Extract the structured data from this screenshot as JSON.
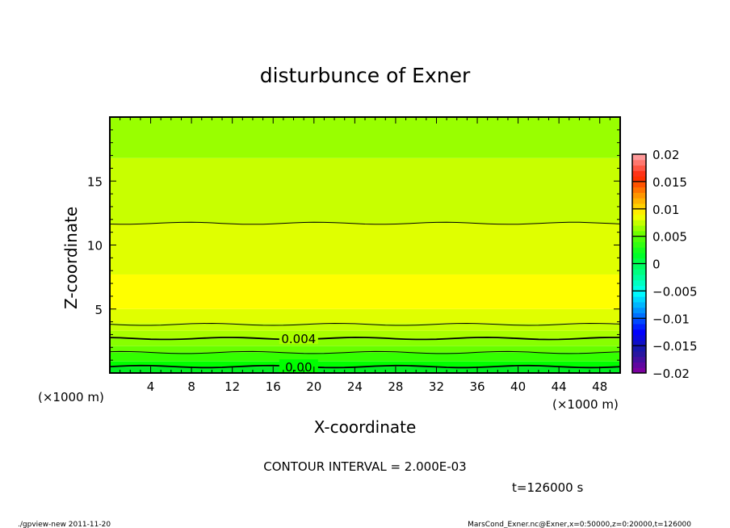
{
  "chart_data": {
    "type": "heatmap",
    "title": "disturbunce of Exner",
    "xlabel": "X-coordinate",
    "ylabel": "Z-coordinate",
    "x_unit_label": "(×1000 m)",
    "y_unit_label": "(×1000 m)",
    "xlim": [
      0,
      50
    ],
    "ylim": [
      0,
      20
    ],
    "x_ticks": [
      4,
      8,
      12,
      16,
      20,
      24,
      28,
      32,
      36,
      40,
      44,
      48
    ],
    "y_ticks": [
      5,
      10,
      15
    ],
    "bands": [
      {
        "z0": 0,
        "z1": 0.5,
        "color": "#00ee22"
      },
      {
        "z0": 0.5,
        "z1": 0.9,
        "color": "#00ff00"
      },
      {
        "z0": 0.9,
        "z1": 1.6,
        "color": "#33ff00"
      },
      {
        "z0": 1.6,
        "z1": 2.1,
        "color": "#66ff00"
      },
      {
        "z0": 2.1,
        "z1": 2.7,
        "color": "#88ff00"
      },
      {
        "z0": 2.7,
        "z1": 3.3,
        "color": "#aaff00"
      },
      {
        "z0": 3.3,
        "z1": 3.9,
        "color": "#c4ff00"
      },
      {
        "z0": 3.9,
        "z1": 5.0,
        "color": "#e0ff00"
      },
      {
        "z0": 5.0,
        "z1": 7.7,
        "color": "#ffff00"
      },
      {
        "z0": 7.7,
        "z1": 11.7,
        "color": "#e0ff00"
      },
      {
        "z0": 11.7,
        "z1": 16.8,
        "color": "#c8ff00"
      },
      {
        "z0": 16.8,
        "z1": 20,
        "color": "#99ff00"
      }
    ],
    "contours": [
      {
        "z": 0.5,
        "label": "0.00",
        "bold": true
      },
      {
        "z": 1.6,
        "label": "",
        "bold": false
      },
      {
        "z": 2.7,
        "label": "0.004",
        "bold": true
      },
      {
        "z": 3.8,
        "label": "",
        "bold": false
      },
      {
        "z": 11.7,
        "label": "",
        "bold": false
      }
    ],
    "colorbar": {
      "range": [
        -0.02,
        0.02
      ],
      "step": 0.001,
      "tick_labels": [
        "0.02",
        "0.015",
        "0.01",
        "0.005",
        "0",
        "−0.005",
        "−0.01",
        "−0.015",
        "−0.02"
      ],
      "stops": [
        "#7a00a0",
        "#1a1aa0",
        "#0000ff",
        "#0088ff",
        "#00ffff",
        "#00ff88",
        "#00ff22",
        "#66ff00",
        "#ffff00",
        "#ff9900",
        "#ff2200",
        "#ff9999"
      ]
    },
    "contour_interval": "CONTOUR INTERVAL = 2.000E-03",
    "time_label": "t=126000 s"
  },
  "footer": {
    "left": "./gpview-new  2011-11-20",
    "right": "MarsCond_Exner.nc@Exner,x=0:50000,z=0:20000,t=126000"
  }
}
